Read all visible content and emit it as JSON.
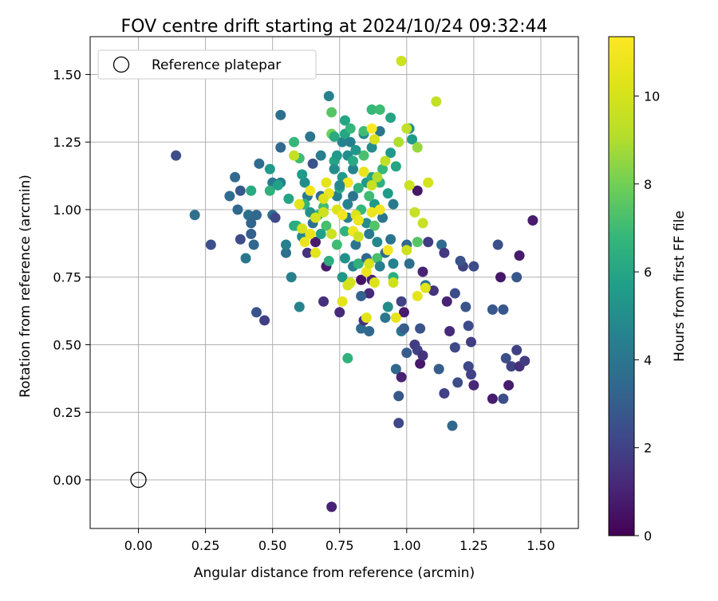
{
  "chart_data": {
    "type": "scatter",
    "title": "FOV centre drift starting at 2024/10/24 09:32:44",
    "xlabel": "Angular distance from reference (arcmin)",
    "ylabel": "Rotation from reference (arcmin)",
    "xlim": [
      -0.18,
      1.64
    ],
    "ylim": [
      -0.18,
      1.64
    ],
    "xticks": [
      0.0,
      0.25,
      0.5,
      0.75,
      1.0,
      1.25,
      1.5
    ],
    "yticks": [
      0.0,
      0.25,
      0.5,
      0.75,
      1.0,
      1.25,
      1.5
    ],
    "xtick_labels": [
      "0.00",
      "0.25",
      "0.50",
      "0.75",
      "1.00",
      "1.25",
      "1.50"
    ],
    "ytick_labels": [
      "0.00",
      "0.25",
      "0.50",
      "0.75",
      "1.00",
      "1.25",
      "1.50"
    ],
    "grid": true,
    "colormap": "viridis",
    "colorbar": {
      "label": "Hours from first FF file",
      "range": [
        0,
        11.35
      ],
      "ticks": [
        0,
        2,
        4,
        6,
        8,
        10
      ],
      "tick_labels": [
        "0",
        "2",
        "4",
        "6",
        "8",
        "10"
      ]
    },
    "legend": {
      "position": "top-left",
      "entries": [
        "Reference platepar"
      ]
    },
    "reference_point": {
      "x": 0.0,
      "y": 0.0
    },
    "points": [
      [
        0.14,
        1.2,
        2.4
      ],
      [
        0.21,
        0.98,
        3.8
      ],
      [
        0.27,
        0.87,
        2.5
      ],
      [
        0.36,
        1.12,
        3.5
      ],
      [
        0.34,
        1.05,
        3.6
      ],
      [
        0.37,
        1.0,
        3.4
      ],
      [
        0.38,
        0.89,
        2.4
      ],
      [
        0.38,
        1.07,
        2.8
      ],
      [
        0.41,
        0.98,
        3.7
      ],
      [
        0.4,
        0.82,
        4.0
      ],
      [
        0.42,
        0.91,
        3.1
      ],
      [
        0.42,
        0.95,
        3.3
      ],
      [
        0.43,
        0.87,
        3.4
      ],
      [
        0.44,
        0.98,
        3.4
      ],
      [
        0.45,
        1.17,
        3.6
      ],
      [
        0.44,
        0.62,
        2.6
      ],
      [
        0.47,
        0.59,
        1.9
      ],
      [
        0.42,
        1.07,
        6.2
      ],
      [
        0.5,
        0.98,
        3.8
      ],
      [
        0.49,
        1.15,
        5.5
      ],
      [
        0.5,
        1.1,
        4.2
      ],
      [
        0.51,
        0.97,
        2.2
      ],
      [
        0.53,
        1.35,
        3.7
      ],
      [
        0.53,
        1.23,
        3.5
      ],
      [
        0.53,
        1.1,
        4.4
      ],
      [
        0.55,
        0.84,
        3.7
      ],
      [
        0.55,
        0.87,
        4.4
      ],
      [
        0.57,
        0.75,
        4.4
      ],
      [
        0.58,
        1.25,
        6.8
      ],
      [
        0.59,
        0.94,
        6.6
      ],
      [
        0.6,
        0.64,
        4.6
      ],
      [
        0.61,
        0.9,
        4.8
      ],
      [
        0.62,
        1.1,
        5.0
      ],
      [
        0.63,
        1.05,
        4.2
      ],
      [
        0.63,
        0.84,
        1.5
      ],
      [
        0.64,
        1.27,
        4.0
      ],
      [
        0.65,
        1.17,
        2.6
      ],
      [
        0.65,
        0.95,
        3.8
      ],
      [
        0.66,
        0.88,
        0.8
      ],
      [
        0.68,
        1.2,
        4.3
      ],
      [
        0.68,
        1.05,
        3.6
      ],
      [
        0.69,
        0.66,
        1.4
      ],
      [
        0.7,
        0.79,
        0.8
      ],
      [
        0.71,
        1.42,
        4.5
      ],
      [
        0.72,
        1.36,
        7.5
      ],
      [
        0.72,
        1.28,
        8.0
      ],
      [
        0.73,
        1.18,
        6.0
      ],
      [
        0.73,
        1.15,
        5.0
      ],
      [
        0.74,
        1.2,
        5.5
      ],
      [
        0.74,
        1.05,
        4.5
      ],
      [
        0.75,
        0.62,
        1.2
      ],
      [
        0.76,
        1.25,
        4.6
      ],
      [
        0.76,
        1.12,
        5.5
      ],
      [
        0.77,
        1.33,
        6.0
      ],
      [
        0.77,
        1.28,
        6.0
      ],
      [
        0.78,
        1.2,
        5.0
      ],
      [
        0.78,
        1.1,
        4.0
      ],
      [
        0.78,
        1.02,
        4.5
      ],
      [
        0.78,
        0.97,
        4.4
      ],
      [
        0.78,
        0.45,
        6.6
      ],
      [
        0.79,
        1.25,
        4.4
      ],
      [
        0.8,
        1.15,
        4.6
      ],
      [
        0.8,
        1.05,
        4.0
      ],
      [
        0.8,
        0.92,
        3.5
      ],
      [
        0.8,
        0.79,
        4.5
      ],
      [
        0.81,
        0.87,
        4.0
      ],
      [
        0.82,
        0.8,
        6.5
      ],
      [
        0.83,
        0.74,
        0.5
      ],
      [
        0.83,
        0.56,
        3.6
      ],
      [
        0.84,
        1.28,
        4.8
      ],
      [
        0.84,
        1.2,
        7.2
      ],
      [
        0.85,
        1.1,
        5.5
      ],
      [
        0.85,
        0.95,
        5.0
      ],
      [
        0.85,
        0.82,
        3.4
      ],
      [
        0.86,
        0.69,
        1.2
      ],
      [
        0.86,
        0.55,
        3.4
      ],
      [
        0.87,
        1.37,
        6.8
      ],
      [
        0.87,
        1.23,
        5.0
      ],
      [
        0.87,
        1.12,
        6.0
      ],
      [
        0.88,
        1.02,
        5.5
      ],
      [
        0.89,
        0.88,
        4.8
      ],
      [
        0.9,
        1.37,
        7.0
      ],
      [
        0.9,
        1.29,
        4.0
      ],
      [
        0.9,
        1.1,
        6.5
      ],
      [
        0.91,
        0.97,
        4.0
      ],
      [
        0.92,
        0.84,
        3.6
      ],
      [
        0.92,
        0.6,
        4.0
      ],
      [
        0.93,
        0.64,
        5.0
      ],
      [
        0.94,
        1.34,
        6.0
      ],
      [
        0.94,
        1.21,
        5.5
      ],
      [
        0.95,
        1.02,
        4.2
      ],
      [
        0.95,
        0.8,
        4.5
      ],
      [
        0.96,
        0.41,
        3.4
      ],
      [
        0.97,
        0.31,
        2.8
      ],
      [
        0.97,
        0.21,
        2.2
      ],
      [
        0.98,
        0.38,
        1.0
      ],
      [
        0.98,
        0.55,
        4.0
      ],
      [
        0.99,
        0.62,
        0.8
      ],
      [
        1.0,
        0.87,
        3.4
      ],
      [
        1.0,
        0.47,
        3.0
      ],
      [
        1.01,
        1.3,
        5.0
      ],
      [
        1.02,
        1.26,
        5.6
      ],
      [
        1.03,
        0.5,
        1.8
      ],
      [
        1.04,
        1.07,
        0.6
      ],
      [
        1.04,
        0.88,
        7.5
      ],
      [
        1.05,
        0.43,
        0.7
      ],
      [
        1.06,
        0.77,
        1.0
      ],
      [
        1.07,
        0.72,
        3.8
      ],
      [
        1.08,
        0.88,
        1.8
      ],
      [
        1.1,
        0.7,
        1.5
      ],
      [
        1.13,
        0.87,
        3.6
      ],
      [
        1.14,
        0.84,
        1.7
      ],
      [
        1.15,
        0.66,
        1.0
      ],
      [
        1.16,
        0.55,
        1.2
      ],
      [
        1.17,
        0.2,
        3.4
      ],
      [
        1.18,
        0.69,
        2.4
      ],
      [
        1.19,
        0.36,
        2.4
      ],
      [
        1.21,
        0.79,
        2.0
      ],
      [
        1.22,
        0.64,
        2.7
      ],
      [
        1.23,
        0.42,
        2.2
      ],
      [
        1.24,
        0.51,
        1.8
      ],
      [
        1.25,
        0.79,
        2.3
      ],
      [
        1.25,
        0.35,
        1.1
      ],
      [
        1.32,
        0.3,
        0.8
      ],
      [
        1.32,
        0.63,
        2.8
      ],
      [
        1.34,
        0.87,
        2.5
      ],
      [
        1.35,
        0.75,
        0.6
      ],
      [
        1.36,
        0.3,
        2.4
      ],
      [
        1.36,
        0.63,
        2.8
      ],
      [
        1.37,
        0.45,
        2.5
      ],
      [
        1.38,
        0.35,
        0.8
      ],
      [
        1.39,
        0.42,
        2.0
      ],
      [
        1.41,
        0.75,
        2.8
      ],
      [
        1.41,
        0.48,
        2.0
      ],
      [
        1.42,
        0.42,
        1.4
      ],
      [
        1.42,
        0.83,
        0.8
      ],
      [
        1.44,
        0.44,
        1.8
      ],
      [
        1.47,
        0.96,
        0.8
      ],
      [
        0.72,
        -0.1,
        1.0
      ],
      [
        1.18,
        0.49,
        2.2
      ],
      [
        0.84,
        0.59,
        1.5
      ],
      [
        0.87,
        0.74,
        1.0
      ],
      [
        0.98,
        0.66,
        2.0
      ],
      [
        1.04,
        0.48,
        2.0
      ],
      [
        1.06,
        0.46,
        1.5
      ],
      [
        1.12,
        0.41,
        3.0
      ],
      [
        1.23,
        0.57,
        2.3
      ],
      [
        1.24,
        0.39,
        2.0
      ],
      [
        1.14,
        0.32,
        2.0
      ],
      [
        1.2,
        0.81,
        2.6
      ],
      [
        0.49,
        1.07,
        6.5
      ],
      [
        0.52,
        1.09,
        5.8
      ],
      [
        0.56,
        1.04,
        6.0
      ],
      [
        0.58,
        0.94,
        6.3
      ],
      [
        0.6,
        1.19,
        7.0
      ],
      [
        0.62,
        1.02,
        6.6
      ],
      [
        0.67,
        0.98,
        6.8
      ],
      [
        0.69,
        1.01,
        7.0
      ],
      [
        0.7,
        0.94,
        7.2
      ],
      [
        0.71,
        0.81,
        6.4
      ],
      [
        0.73,
        1.27,
        6.2
      ],
      [
        0.74,
        0.87,
        7.0
      ],
      [
        0.75,
        1.08,
        6.2
      ],
      [
        0.77,
        0.92,
        6.6
      ],
      [
        0.79,
        1.3,
        6.7
      ],
      [
        0.8,
        1.18,
        6.2
      ],
      [
        0.82,
        1.08,
        6.6
      ],
      [
        0.83,
        1.0,
        6.8
      ],
      [
        0.84,
        1.29,
        7.0
      ],
      [
        0.86,
        1.05,
        7.0
      ],
      [
        0.88,
        0.94,
        7.4
      ],
      [
        0.89,
        0.82,
        7.2
      ],
      [
        0.91,
        1.15,
        6.8
      ],
      [
        0.95,
        0.75,
        6.4
      ],
      [
        0.96,
        1.16,
        6.0
      ],
      [
        0.93,
        1.06,
        5.6
      ],
      [
        0.76,
        0.75,
        5.4
      ],
      [
        0.68,
        0.91,
        5.8
      ],
      [
        0.64,
        0.99,
        5.2
      ],
      [
        0.61,
        1.13,
        5.6
      ],
      [
        0.58,
        1.2,
        9.5
      ],
      [
        0.6,
        1.02,
        10.5
      ],
      [
        0.61,
        0.93,
        10.0
      ],
      [
        0.62,
        0.88,
        10.7
      ],
      [
        0.64,
        1.07,
        11.0
      ],
      [
        0.66,
        0.97,
        10.0
      ],
      [
        0.66,
        0.84,
        10.4
      ],
      [
        0.69,
        0.99,
        9.8
      ],
      [
        0.7,
        1.1,
        10.5
      ],
      [
        0.71,
        1.06,
        10.8
      ],
      [
        0.72,
        0.91,
        9.7
      ],
      [
        0.74,
        1.0,
        10.1
      ],
      [
        0.76,
        0.98,
        11.0
      ],
      [
        0.76,
        0.66,
        10.5
      ],
      [
        0.78,
        1.1,
        11.3
      ],
      [
        0.78,
        0.72,
        10.0
      ],
      [
        0.8,
        0.92,
        11.0
      ],
      [
        0.81,
        0.98,
        10.2
      ],
      [
        0.82,
        0.96,
        10.8
      ],
      [
        0.82,
        0.9,
        9.7
      ],
      [
        0.84,
        1.14,
        10.6
      ],
      [
        0.85,
        0.77,
        10.7
      ],
      [
        0.85,
        0.6,
        10.4
      ],
      [
        0.86,
        0.8,
        10.0
      ],
      [
        0.87,
        1.3,
        11.3
      ],
      [
        0.87,
        1.09,
        9.6
      ],
      [
        0.88,
        0.73,
        10.2
      ],
      [
        0.89,
        1.12,
        9.0
      ],
      [
        0.9,
        1.0,
        11.0
      ],
      [
        0.92,
        1.18,
        9.4
      ],
      [
        0.93,
        0.85,
        11.0
      ],
      [
        0.95,
        0.73,
        9.8
      ],
      [
        0.96,
        0.6,
        10.6
      ],
      [
        0.97,
        1.25,
        9.0
      ],
      [
        0.98,
        1.55,
        9.7
      ],
      [
        1.0,
        1.3,
        9.4
      ],
      [
        1.0,
        0.85,
        9.8
      ],
      [
        1.01,
        1.09,
        9.7
      ],
      [
        1.03,
        0.99,
        9.6
      ],
      [
        1.04,
        1.23,
        8.6
      ],
      [
        1.04,
        0.68,
        10.5
      ],
      [
        1.06,
        0.95,
        9.6
      ],
      [
        1.07,
        0.71,
        10.4
      ],
      [
        1.08,
        1.1,
        10.0
      ],
      [
        1.11,
        1.4,
        9.5
      ],
      [
        0.64,
        0.91,
        10.6
      ],
      [
        0.69,
        1.04,
        10.2
      ],
      [
        0.88,
        1.26,
        10.0
      ],
      [
        0.79,
        0.73,
        9.9
      ],
      [
        0.87,
        0.99,
        10.8
      ],
      [
        0.75,
        1.09,
        4.8
      ],
      [
        0.77,
        0.82,
        5.2
      ],
      [
        0.81,
        1.22,
        5.4
      ],
      [
        0.83,
        0.68,
        3.2
      ],
      [
        0.86,
        0.91,
        4.2
      ],
      [
        0.9,
        0.79,
        4.4
      ],
      [
        0.94,
        0.89,
        3.9
      ],
      [
        0.99,
        0.56,
        3.0
      ],
      [
        1.01,
        0.8,
        3.7
      ],
      [
        1.05,
        0.56,
        2.6
      ]
    ]
  }
}
